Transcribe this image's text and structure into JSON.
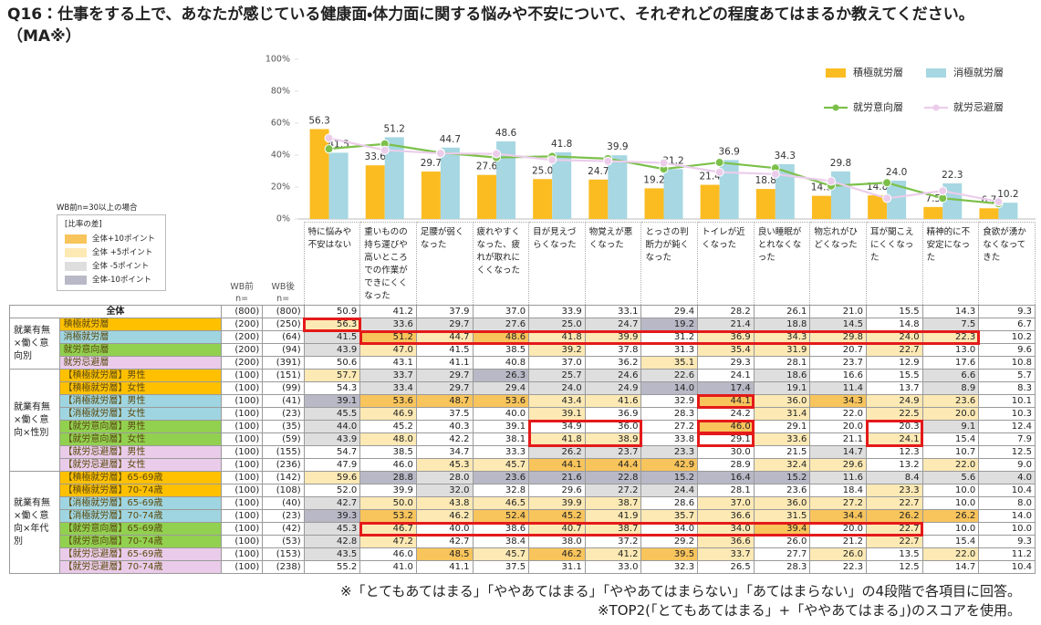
{
  "title": "Q16：仕事をする上で、あなたが感じている健康面・体力面に関する悩みや不安について、それぞれどの程度あてはまるか教えてください。（MA※）",
  "chart_data": {
    "type": "bar",
    "categories": [
      "特に悩みや不安はない",
      "重いものの持ち運びや高いところでの作業ができにくくなった",
      "足腰が弱くなった",
      "疲れやすくなった、疲れが取れにくくなった",
      "目が見えづらくなった",
      "物覚えが悪くなった",
      "とっさの判断力が鈍くなった",
      "トイレが近くなった",
      "良い睡眠がとれなくなった",
      "物忘れがひどくなった",
      "耳が聞こえにくくなった",
      "精神的に不安定になった",
      "食欲が湧かなくなってきた"
    ],
    "ylim": [
      0,
      100
    ],
    "yticks": [
      {
        "value": 0,
        "label": "0%"
      },
      {
        "value": 20,
        "label": "20%"
      },
      {
        "value": 40,
        "label": "40%"
      },
      {
        "value": 60,
        "label": "60%"
      },
      {
        "value": 80,
        "label": "80%"
      },
      {
        "value": 100,
        "label": "100%"
      }
    ],
    "grid": false,
    "series": [
      {
        "name": "積極就労層",
        "type": "bar",
        "color": "#fbbc22",
        "values": [
          56.3,
          33.6,
          29.7,
          27.6,
          25.0,
          24.7,
          19.2,
          21.4,
          18.8,
          14.5,
          14.8,
          7.5,
          6.7
        ],
        "value_labels": [
          "56.3",
          "33.6",
          "29.7",
          "27.6",
          "25.0",
          "24.7",
          "19.2",
          "21.4",
          "18.8",
          "14.5",
          "14.8",
          "7.5",
          "6.7"
        ]
      },
      {
        "name": "消極就労層",
        "type": "bar",
        "color": "#a6d7e2",
        "values": [
          41.5,
          51.2,
          44.7,
          48.6,
          41.8,
          39.9,
          31.2,
          36.9,
          34.3,
          29.8,
          24.0,
          22.3,
          10.2
        ],
        "value_labels": [
          "41.5",
          "51.2",
          "44.7",
          "48.6",
          "41.8",
          "39.9",
          "31.2",
          "36.9",
          "34.3",
          "29.8",
          "24.0",
          "22.3",
          "10.2"
        ]
      },
      {
        "name": "就労意向層",
        "type": "line",
        "color": "#7cc04a",
        "values": [
          43.9,
          47.0,
          41.5,
          38.5,
          39.2,
          37.8,
          31.3,
          35.4,
          31.9,
          20.7,
          22.7,
          13.0,
          9.6
        ]
      },
      {
        "name": "就労忌避層",
        "type": "line",
        "color": "#ebcdeb",
        "values": [
          50.6,
          43.1,
          41.1,
          40.8,
          37.0,
          36.2,
          35.1,
          29.3,
          28.1,
          23.7,
          12.9,
          17.6,
          10.8
        ]
      }
    ]
  },
  "heat_legend": {
    "note": "WB前n=30以上の場合",
    "title": "[比率の差]",
    "items": [
      {
        "label": "全体+10ポイント",
        "color": "#f8c45c",
        "threshold": 10
      },
      {
        "label": "全体 +5ポイント",
        "color": "#fde9b4",
        "threshold": 5
      },
      {
        "label": "全体 -5ポイント",
        "color": "#dedede",
        "threshold": -5
      },
      {
        "label": "全体-10ポイント",
        "color": "#b8b8c6",
        "threshold": -10
      }
    ]
  },
  "table": {
    "n_headers": [
      {
        "label": "WB前",
        "sub": "n="
      },
      {
        "label": "WB後",
        "sub": "n="
      }
    ],
    "total": {
      "label": "全体",
      "n_before": "(800)",
      "n_after": "(800)",
      "values": [
        "50.9",
        "41.2",
        "37.9",
        "37.0",
        "33.9",
        "33.1",
        "29.4",
        "28.2",
        "26.1",
        "21.0",
        "15.5",
        "14.3",
        "9.3"
      ]
    },
    "groups": [
      {
        "label": "就業有無×働く意向別",
        "rows": [
          {
            "label": "積極就労層",
            "color": "#ffc000",
            "n_before": "(200)",
            "n_after": "(250)",
            "values": [
              "56.3",
              "33.6",
              "29.7",
              "27.6",
              "25.0",
              "24.7",
              "19.2",
              "21.4",
              "18.8",
              "14.5",
              "14.8",
              "7.5",
              "6.7"
            ]
          },
          {
            "label": "消極就労層",
            "color": "#9fd5e1",
            "n_before": "(200)",
            "n_after": "(64)",
            "values": [
              "41.5",
              "51.2",
              "44.7",
              "48.6",
              "41.8",
              "39.9",
              "31.2",
              "36.9",
              "34.3",
              "29.8",
              "24.0",
              "22.3",
              "10.2"
            ]
          },
          {
            "label": "就労意向層",
            "color": "#92d050",
            "n_before": "(200)",
            "n_after": "(94)",
            "values": [
              "43.9",
              "47.0",
              "41.5",
              "38.5",
              "39.2",
              "37.8",
              "31.3",
              "35.4",
              "31.9",
              "20.7",
              "22.7",
              "13.0",
              "9.6"
            ]
          },
          {
            "label": "就労忌避層",
            "color": "#eacbea",
            "n_before": "(200)",
            "n_after": "(391)",
            "values": [
              "50.6",
              "43.1",
              "41.1",
              "40.8",
              "37.0",
              "36.2",
              "35.1",
              "29.3",
              "28.1",
              "23.7",
              "12.9",
              "17.6",
              "10.8"
            ]
          }
        ]
      },
      {
        "label": "就業有無×働く意向×性別",
        "rows": [
          {
            "label": "【積極就労層】男性",
            "color": "#ffc000",
            "n_before": "(100)",
            "n_after": "(151)",
            "values": [
              "57.7",
              "33.7",
              "29.7",
              "26.3",
              "25.7",
              "24.6",
              "22.6",
              "24.1",
              "18.6",
              "16.6",
              "15.5",
              "6.6",
              "5.7"
            ]
          },
          {
            "label": "【積極就労層】女性",
            "color": "#ffc000",
            "n_before": "(100)",
            "n_after": "(99)",
            "values": [
              "54.3",
              "33.4",
              "29.7",
              "29.4",
              "24.0",
              "24.9",
              "14.0",
              "17.4",
              "19.1",
              "11.4",
              "13.7",
              "8.9",
              "8.3"
            ]
          },
          {
            "label": "【消極就労層】男性",
            "color": "#9fd5e1",
            "n_before": "(100)",
            "n_after": "(41)",
            "values": [
              "39.1",
              "53.6",
              "48.7",
              "53.6",
              "43.4",
              "41.6",
              "32.9",
              "44.1",
              "36.0",
              "34.3",
              "24.9",
              "23.6",
              "10.1"
            ]
          },
          {
            "label": "【消極就労層】女性",
            "color": "#9fd5e1",
            "n_before": "(100)",
            "n_after": "(23)",
            "values": [
              "45.5",
              "46.9",
              "37.5",
              "40.0",
              "39.1",
              "36.9",
              "28.3",
              "24.2",
              "31.4",
              "22.0",
              "22.5",
              "20.0",
              "10.3"
            ]
          },
          {
            "label": "【就労意向層】男性",
            "color": "#92d050",
            "n_before": "(100)",
            "n_after": "(35)",
            "values": [
              "44.0",
              "45.2",
              "40.3",
              "39.1",
              "34.9",
              "36.0",
              "27.2",
              "46.0",
              "29.1",
              "20.0",
              "20.3",
              "9.1",
              "12.4"
            ]
          },
          {
            "label": "【就労意向層】女性",
            "color": "#92d050",
            "n_before": "(100)",
            "n_after": "(59)",
            "values": [
              "43.9",
              "48.0",
              "42.2",
              "38.1",
              "41.8",
              "38.9",
              "33.8",
              "29.1",
              "33.6",
              "21.1",
              "24.1",
              "15.4",
              "7.9"
            ]
          },
          {
            "label": "【就労忌避層】男性",
            "color": "#eacbea",
            "n_before": "(100)",
            "n_after": "(155)",
            "values": [
              "54.7",
              "38.5",
              "34.7",
              "33.3",
              "26.2",
              "23.7",
              "23.3",
              "30.0",
              "21.5",
              "14.7",
              "12.3",
              "10.7",
              "12.5"
            ]
          },
          {
            "label": "【就労忌避層】女性",
            "color": "#eacbea",
            "n_before": "(100)",
            "n_after": "(236)",
            "values": [
              "47.9",
              "46.0",
              "45.3",
              "45.7",
              "44.1",
              "44.4",
              "42.9",
              "28.9",
              "32.4",
              "29.6",
              "13.2",
              "22.0",
              "9.0"
            ]
          }
        ]
      },
      {
        "label": "就業有無×働く意向×年代別",
        "rows": [
          {
            "label": "【積極就労層】65-69歳",
            "color": "#ffc000",
            "n_before": "(100)",
            "n_after": "(142)",
            "values": [
              "59.6",
              "28.8",
              "28.0",
              "23.6",
              "21.6",
              "22.8",
              "15.2",
              "16.4",
              "15.2",
              "11.6",
              "8.4",
              "5.6",
              "4.0"
            ]
          },
          {
            "label": "【積極就労層】70-74歳",
            "color": "#ffc000",
            "n_before": "(100)",
            "n_after": "(108)",
            "values": [
              "52.0",
              "39.9",
              "32.0",
              "32.8",
              "29.6",
              "27.2",
              "24.4",
              "28.1",
              "23.6",
              "18.4",
              "23.3",
              "10.0",
              "10.4"
            ]
          },
          {
            "label": "【消極就労層】65-69歳",
            "color": "#9fd5e1",
            "n_before": "(100)",
            "n_after": "(40)",
            "values": [
              "42.7",
              "50.0",
              "43.8",
              "46.5",
              "39.9",
              "38.7",
              "28.6",
              "37.0",
              "36.0",
              "27.2",
              "22.7",
              "10.0",
              "8.0"
            ]
          },
          {
            "label": "【消極就労層】70-74歳",
            "color": "#9fd5e1",
            "n_before": "(100)",
            "n_after": "(23)",
            "values": [
              "39.3",
              "53.2",
              "46.2",
              "52.4",
              "45.2",
              "41.9",
              "35.7",
              "36.6",
              "31.5",
              "34.4",
              "26.2",
              "26.2",
              "14.0"
            ]
          },
          {
            "label": "【就労意向層】65-69歳",
            "color": "#92d050",
            "n_before": "(100)",
            "n_after": "(42)",
            "values": [
              "45.3",
              "46.7",
              "40.0",
              "38.6",
              "40.7",
              "38.7",
              "34.0",
              "34.0",
              "39.4",
              "20.0",
              "22.7",
              "10.0",
              "10.0"
            ]
          },
          {
            "label": "【就労意向層】70-74歳",
            "color": "#92d050",
            "n_before": "(100)",
            "n_after": "(53)",
            "values": [
              "42.8",
              "47.2",
              "42.7",
              "38.4",
              "38.0",
              "37.2",
              "29.2",
              "36.6",
              "26.0",
              "21.2",
              "22.7",
              "15.4",
              "9.3"
            ]
          },
          {
            "label": "【就労忌避層】65-69歳",
            "color": "#eacbea",
            "n_before": "(100)",
            "n_after": "(153)",
            "values": [
              "43.5",
              "46.0",
              "48.5",
              "45.7",
              "46.2",
              "41.2",
              "39.5",
              "33.7",
              "27.7",
              "26.0",
              "13.5",
              "22.0",
              "11.2"
            ]
          },
          {
            "label": "【就労忌避層】70-74歳",
            "color": "#eacbea",
            "n_before": "(100)",
            "n_after": "(238)",
            "values": [
              "55.2",
              "41.0",
              "41.1",
              "37.5",
              "31.1",
              "33.0",
              "32.3",
              "26.5",
              "28.3",
              "22.3",
              "12.5",
              "14.7",
              "10.4"
            ]
          }
        ]
      }
    ]
  },
  "footnotes": [
    "※「とてもあてはまる」「ややあてはまる」「ややあてはまらない」「あてはまらない」の4段階で各項目に回答。",
    "※TOP2(「とてもあてはまる」+「ややあてはまる」)のスコアを使用。"
  ]
}
